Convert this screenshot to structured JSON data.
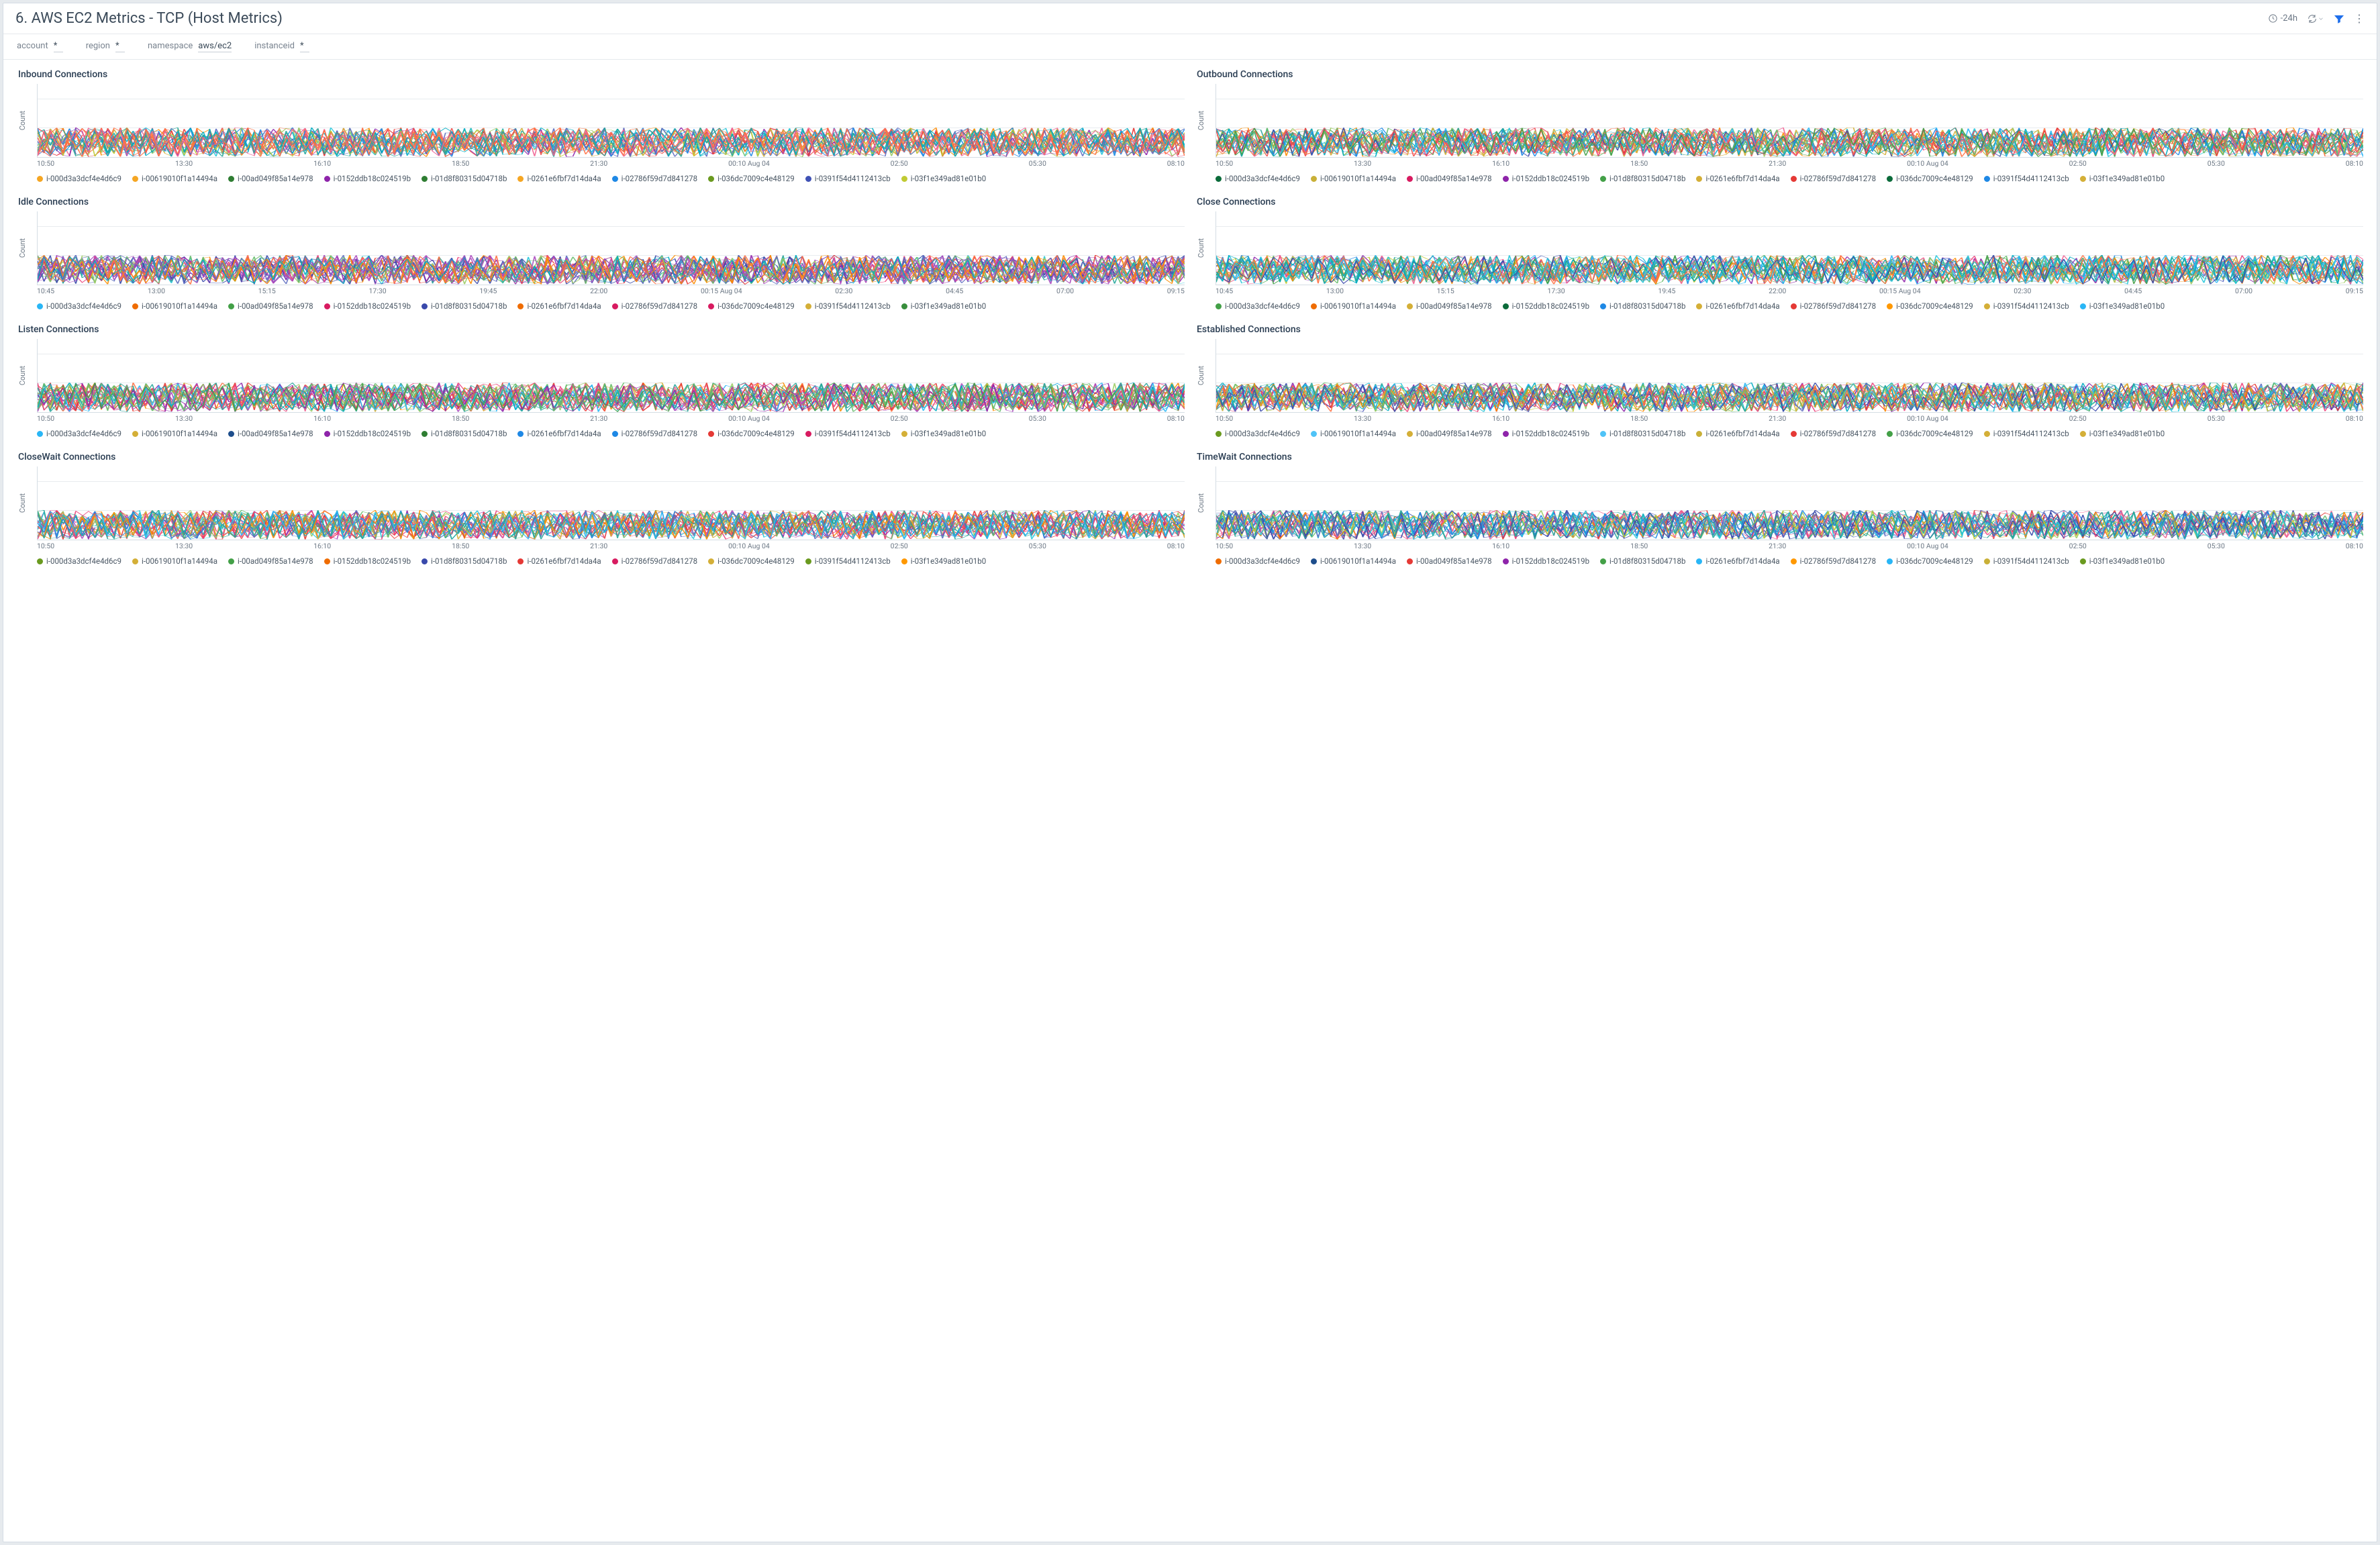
{
  "header": {
    "title": "6. AWS EC2 Metrics - TCP (Host Metrics)",
    "time_range": "-24h"
  },
  "filters": [
    {
      "label": "account",
      "value": "*"
    },
    {
      "label": "region",
      "value": "*"
    },
    {
      "label": "namespace",
      "value": "aws/ec2"
    },
    {
      "label": "instanceid",
      "value": "*"
    }
  ],
  "colors": {
    "page_bg": "#e6eaee",
    "panel_bg": "#ffffff",
    "border": "#d5dde4",
    "grid": "#e8ecef",
    "text_primary": "#3b4a59",
    "text_muted": "#6c7885",
    "filter_icon": "#1f6feb"
  },
  "noise_palette": [
    "#1e88e5",
    "#43a047",
    "#e53935",
    "#fb8c00",
    "#8e24aa",
    "#00acc1",
    "#c0ca33",
    "#f06292",
    "#3949ab",
    "#26a69a",
    "#ef5350",
    "#66bb6a",
    "#ab47bc",
    "#29b6f6",
    "#ff7043",
    "#9ccc65",
    "#5c6bc0",
    "#d4af37",
    "#ec407a",
    "#26c6da"
  ],
  "instance_ids": [
    "i-000d3a3dcf4e4d6c9",
    "i-00619010f1a14494a",
    "i-00ad049f85a14e978",
    "i-0152ddb18c024519b",
    "i-01d8f80315d04718b",
    "i-0261e6fbf7d14da4a",
    "i-02786f59d7d841278",
    "i-036dc7009c4e48129",
    "i-0391f54d4112413cb",
    "i-03f1e349ad81e01b0"
  ],
  "yaxis": {
    "label": "Count",
    "ylim": [
      0,
      50
    ],
    "ticks": [
      0,
      20,
      40
    ],
    "data_band_top": 20
  },
  "xaxis_sets": {
    "A": [
      "10:50",
      "13:30",
      "16:10",
      "18:50",
      "21:30",
      "00:10 Aug 04",
      "02:50",
      "05:30",
      "08:10"
    ],
    "B": [
      "10:45",
      "13:00",
      "15:15",
      "17:30",
      "19:45",
      "22:00",
      "00:15 Aug 04",
      "02:30",
      "04:45",
      "07:00",
      "09:15"
    ]
  },
  "panels": [
    {
      "title": "Inbound Connections",
      "xaxis": "A",
      "legend_colors": [
        "#f5a623",
        "#f5a623",
        "#2e7d32",
        "#8e24aa",
        "#2e7d32",
        "#f5a623",
        "#1e88e5",
        "#6a9a1f",
        "#3f51b5",
        "#c0ca33"
      ]
    },
    {
      "title": "Outbound Connections",
      "xaxis": "A",
      "legend_colors": [
        "#0b6b3a",
        "#c9b037",
        "#d81b60",
        "#8e24aa",
        "#43a047",
        "#d4af37",
        "#e53935",
        "#0b6b3a",
        "#1e88e5",
        "#d4af37"
      ]
    },
    {
      "title": "Idle Connections",
      "xaxis": "B",
      "legend_colors": [
        "#29b6f6",
        "#ef6c00",
        "#43a047",
        "#d81b60",
        "#3949ab",
        "#ef6c00",
        "#d81b60",
        "#d81b60",
        "#d4af37",
        "#388e3c"
      ]
    },
    {
      "title": "Close Connections",
      "xaxis": "B",
      "legend_colors": [
        "#43a047",
        "#ef6c00",
        "#d4af37",
        "#0b6b3a",
        "#1e88e5",
        "#d4af37",
        "#e53935",
        "#ff9800",
        "#d4af37",
        "#29b6f6"
      ]
    },
    {
      "title": "Listen Connections",
      "xaxis": "A",
      "legend_colors": [
        "#29b6f6",
        "#d4af37",
        "#1e4e8c",
        "#8e24aa",
        "#2e7d32",
        "#1e88e5",
        "#1e88e5",
        "#e53935",
        "#d81b60",
        "#d4af37"
      ]
    },
    {
      "title": "Established Connections",
      "xaxis": "A",
      "legend_colors": [
        "#6a9a1f",
        "#4fc3f7",
        "#d4af37",
        "#8e24aa",
        "#4fc3f7",
        "#c9b037",
        "#e53935",
        "#43a047",
        "#d4af37",
        "#d4af37"
      ]
    },
    {
      "title": "CloseWait Connections",
      "xaxis": "A",
      "legend_colors": [
        "#6a9a1f",
        "#d4af37",
        "#43a047",
        "#ef6c00",
        "#3949ab",
        "#e53935",
        "#d81b60",
        "#d4af37",
        "#6a9a1f",
        "#ff9800"
      ]
    },
    {
      "title": "TimeWait Connections",
      "xaxis": "A",
      "legend_colors": [
        "#ef6c00",
        "#1e4e8c",
        "#e53935",
        "#8e24aa",
        "#43a047",
        "#29b6f6",
        "#ff9800",
        "#29b6f6",
        "#c9b037",
        "#6a9a1f"
      ]
    }
  ]
}
